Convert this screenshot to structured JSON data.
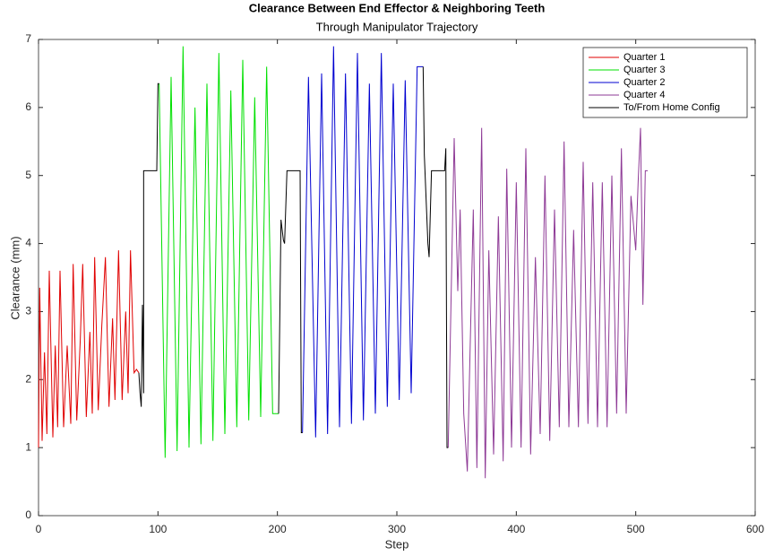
{
  "chart_data": {
    "type": "line",
    "title": "Clearance Between End Effector & Neighboring Teeth",
    "subtitle": "Through Manipulator Trajectory",
    "x_label": "Step",
    "y_label": "Clearance (mm)",
    "xlim": [
      0,
      600
    ],
    "xticks": [
      0,
      100,
      200,
      300,
      400,
      500,
      600
    ],
    "ylim": [
      0,
      7
    ],
    "yticks": [
      0,
      1,
      2,
      3,
      4,
      5,
      6,
      7
    ],
    "legend": "northeast",
    "series": [
      {
        "name": "Quarter 1",
        "color": "#e00000",
        "x": [
          0,
          1,
          3,
          5,
          7,
          9,
          12,
          14,
          16,
          18,
          21,
          24,
          27,
          29,
          32,
          35,
          37,
          40,
          43,
          45,
          47,
          50,
          53,
          56,
          59,
          62,
          64,
          67,
          70,
          73,
          75,
          77,
          80,
          82,
          84
        ],
        "values": [
          1.0,
          3.35,
          1.1,
          2.4,
          1.2,
          3.6,
          1.15,
          2.5,
          1.3,
          3.6,
          1.3,
          2.5,
          1.35,
          3.7,
          1.4,
          2.6,
          3.7,
          1.45,
          2.7,
          1.5,
          3.8,
          1.55,
          2.8,
          3.8,
          1.6,
          2.9,
          1.7,
          3.9,
          1.7,
          3.0,
          1.8,
          3.9,
          2.1,
          2.15,
          2.1
        ]
      },
      {
        "name": "Quarter 3",
        "color": "#00e000",
        "x": [
          101,
          106,
          111,
          116,
          121,
          126,
          131,
          136,
          141,
          146,
          151,
          156,
          161,
          166,
          171,
          176,
          181,
          186,
          191,
          196,
          201
        ],
        "values": [
          6.35,
          0.85,
          6.45,
          0.95,
          6.9,
          1.0,
          6.0,
          1.05,
          6.35,
          1.1,
          6.8,
          1.2,
          6.25,
          1.3,
          6.7,
          1.4,
          6.15,
          1.45,
          6.6,
          1.5,
          1.5
        ]
      },
      {
        "name": "Quarter 2",
        "color": "#0000d0",
        "x": [
          221,
          226,
          232,
          237,
          242,
          247,
          252,
          257,
          262,
          267,
          272,
          277,
          282,
          287,
          292,
          297,
          302,
          307,
          312,
          317,
          322
        ],
        "values": [
          1.22,
          6.45,
          1.15,
          6.5,
          1.2,
          6.9,
          1.3,
          6.5,
          1.35,
          6.8,
          1.4,
          6.35,
          1.5,
          6.8,
          1.6,
          6.35,
          1.7,
          6.4,
          1.8,
          6.6,
          6.6
        ]
      },
      {
        "name": "Quarter 4",
        "color": "#8e3a96",
        "x": [
          343,
          348,
          351,
          353,
          356,
          359,
          364,
          367,
          371,
          374,
          377,
          381,
          385,
          389,
          392,
          396,
          400,
          404,
          408,
          412,
          416,
          420,
          424,
          428,
          432,
          436,
          440,
          444,
          448,
          452,
          456,
          460,
          464,
          468,
          472,
          476,
          480,
          484,
          488,
          492,
          496,
          500,
          502,
          504,
          506,
          508,
          510
        ],
        "values": [
          1.0,
          5.55,
          3.3,
          4.5,
          1.5,
          0.65,
          4.5,
          0.7,
          5.7,
          0.55,
          3.9,
          0.9,
          4.4,
          0.8,
          5.1,
          1.0,
          4.9,
          1.0,
          5.4,
          0.9,
          3.8,
          1.2,
          5.0,
          1.1,
          4.5,
          1.3,
          5.5,
          1.3,
          4.2,
          1.3,
          5.2,
          1.35,
          4.9,
          1.3,
          4.9,
          1.3,
          5.0,
          1.5,
          5.4,
          1.5,
          4.7,
          3.9,
          4.9,
          5.7,
          3.1,
          5.07,
          5.07
        ]
      },
      {
        "name": "To/From Home Config",
        "color": "#000000",
        "x": [
          84,
          85,
          86,
          87,
          88,
          88,
          99,
          100,
          101,
          150,
          201,
          203,
          205,
          206,
          208,
          219,
          220,
          221,
          280,
          322,
          323,
          326,
          327,
          329,
          340,
          341,
          342,
          343
        ],
        "values": [
          2.1,
          1.8,
          1.6,
          3.1,
          1.8,
          5.07,
          5.07,
          6.35,
          6.35,
          null,
          1.5,
          4.35,
          4.05,
          4.0,
          5.07,
          5.07,
          1.22,
          1.22,
          null,
          6.6,
          5.3,
          4.0,
          3.8,
          5.07,
          5.07,
          5.4,
          1.0,
          1.0
        ]
      }
    ]
  }
}
